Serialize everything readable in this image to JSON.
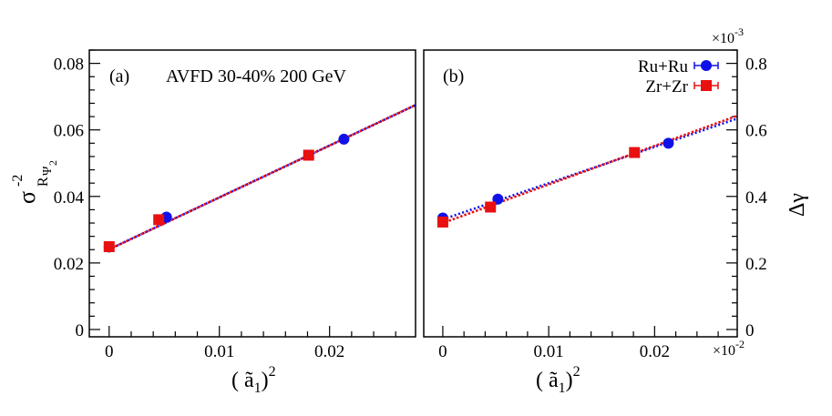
{
  "chart_data": [
    {
      "type": "scatter",
      "panel_label": "(a)",
      "annotation": "AVFD 30-40% 200 GeV",
      "ylabel": "σ",
      "ylabel_sup": "-2",
      "ylabel_sub": "R",
      "ylabel_subsub": "Ψ",
      "ylabel_subsubsub": "2",
      "xlabel_open": "( ",
      "xlabel_var": "ã",
      "xlabel_sub": "1",
      "xlabel_close": ")",
      "xlabel_sup": "2",
      "xlim": [
        -0.0018,
        0.0278
      ],
      "ylim": [
        -0.0022,
        0.084
      ],
      "x_ticks": [
        0,
        0.01,
        0.02
      ],
      "x_tick_labels": [
        "0",
        "0.01",
        "0.02"
      ],
      "y_ticks": [
        0,
        0.02,
        0.04,
        0.06,
        0.08
      ],
      "y_tick_labels": [
        "0",
        "0.02",
        "0.04",
        "0.06",
        "0.08"
      ],
      "series": [
        {
          "name": "Ru+Ru",
          "marker": "circle",
          "color": "#1010e8",
          "x": [
            0.0,
            0.0052,
            0.0213
          ],
          "y": [
            0.0248,
            0.0338,
            0.0572
          ],
          "fit": {
            "intercept": 0.0241,
            "slope": 1.56
          }
        },
        {
          "name": "Zr+Zr",
          "marker": "square",
          "color": "#e81010",
          "x": [
            0.0,
            0.0045,
            0.0181
          ],
          "y": [
            0.0249,
            0.033,
            0.0524
          ],
          "fit": {
            "intercept": 0.0241,
            "slope": 1.56
          }
        }
      ]
    },
    {
      "type": "scatter",
      "panel_label": "(b)",
      "ylabel": "Δγ",
      "x_multiplier_base": "×10",
      "x_multiplier_exp": "-2",
      "y_multiplier_base": "×10",
      "y_multiplier_exp": "-3",
      "xlabel_open": "( ",
      "xlabel_var": "ã",
      "xlabel_sub": "1",
      "xlabel_close": ")",
      "xlabel_sup": "2",
      "xlim": [
        -0.0018,
        0.0278
      ],
      "ylim": [
        -0.022,
        0.84
      ],
      "x_ticks": [
        0,
        0.01,
        0.02
      ],
      "x_tick_labels": [
        "0",
        "0.01",
        "0.02"
      ],
      "y_ticks": [
        0,
        0.2,
        0.4,
        0.6,
        0.8
      ],
      "y_tick_labels": [
        "0",
        "0.2",
        "0.4",
        "0.6",
        "0.8"
      ],
      "legend_position": "top-right",
      "series": [
        {
          "name": "Ru+Ru",
          "marker": "circle",
          "color": "#1010e8",
          "x": [
            0.0,
            0.0052,
            0.0213
          ],
          "y": [
            0.335,
            0.392,
            0.56
          ],
          "fit": {
            "intercept": 0.331,
            "slope": 10.9
          }
        },
        {
          "name": "Zr+Zr",
          "marker": "square",
          "color": "#e81010",
          "x": [
            0.0,
            0.0045,
            0.0181
          ],
          "y": [
            0.323,
            0.368,
            0.532
          ],
          "fit": {
            "intercept": 0.32,
            "slope": 11.6
          }
        }
      ]
    }
  ]
}
